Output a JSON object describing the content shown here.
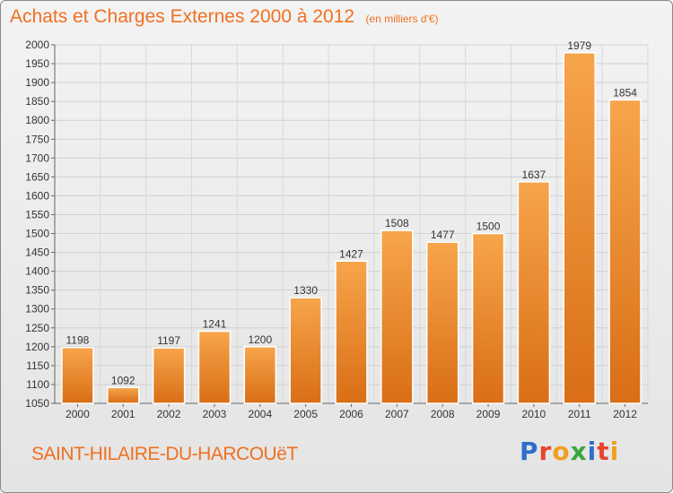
{
  "title": "Achats et Charges Externes 2000 à 2012",
  "unit": "(en milliers d'€)",
  "town": "SAINT-HILAIRE-DU-HARCOUëT",
  "logo": {
    "text": "Proxiti",
    "colors": [
      "#2f6fc9",
      "#e8452c",
      "#f0a020",
      "#3aa540",
      "#2f6fc9",
      "#e8452c",
      "#f0a020"
    ]
  },
  "colors": {
    "bar_top": "#f7a54b",
    "bar_bottom": "#d96e16",
    "accent": "#f07020"
  },
  "chart_data": {
    "type": "bar",
    "categories": [
      "2000",
      "2001",
      "2002",
      "2003",
      "2004",
      "2005",
      "2006",
      "2007",
      "2008",
      "2009",
      "2010",
      "2011",
      "2012"
    ],
    "values": [
      1198,
      1092,
      1197,
      1241,
      1200,
      1330,
      1427,
      1508,
      1477,
      1500,
      1637,
      1979,
      1854
    ],
    "title": "Achats et Charges Externes 2000 à 2012",
    "subtitle": "(en milliers d'€)",
    "ylim": [
      1050,
      2000
    ],
    "yticks": [
      1050,
      1100,
      1150,
      1200,
      1250,
      1300,
      1350,
      1400,
      1450,
      1500,
      1550,
      1600,
      1650,
      1700,
      1750,
      1800,
      1850,
      1900,
      1950,
      2000
    ],
    "grid": true,
    "legend": "none"
  }
}
